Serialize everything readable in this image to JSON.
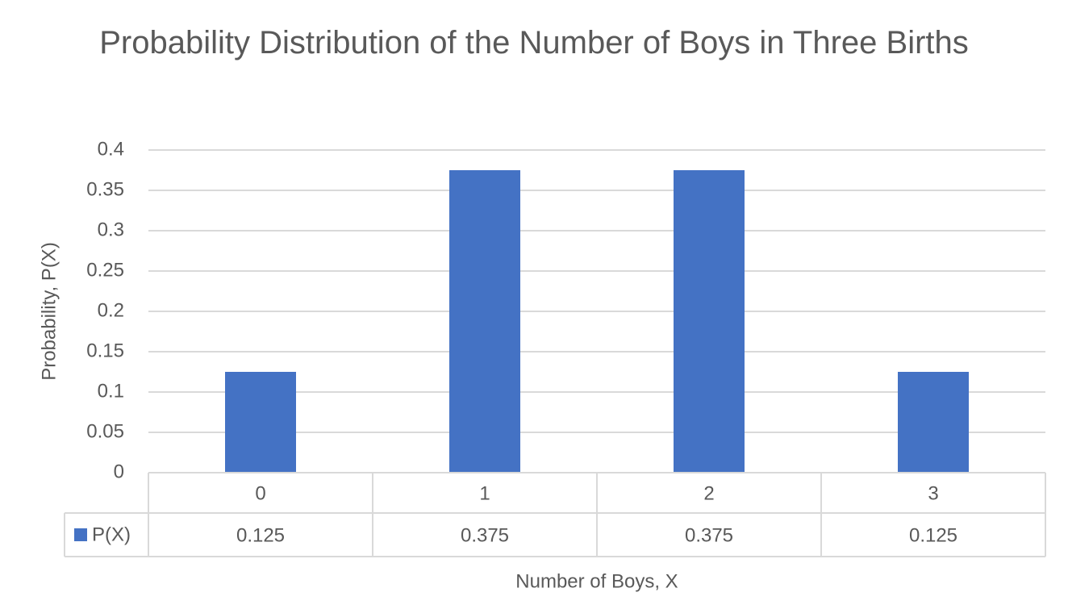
{
  "chart_data": {
    "type": "bar",
    "title": "Probability Distribution of the Number of Boys in Three Births",
    "x_label": "Number of Boys, X",
    "y_label": "Probability, P(X)",
    "categories": [
      "0",
      "1",
      "2",
      "3"
    ],
    "series": [
      {
        "name": "P(X)",
        "color": "#4472c4",
        "values": [
          0.125,
          0.375,
          0.375,
          0.125
        ]
      }
    ],
    "ylim": [
      0,
      0.4
    ],
    "yticks": [
      0,
      0.05,
      0.1,
      0.15,
      0.2,
      0.25,
      0.3,
      0.35,
      0.4
    ],
    "grid": true,
    "data_table": true
  }
}
